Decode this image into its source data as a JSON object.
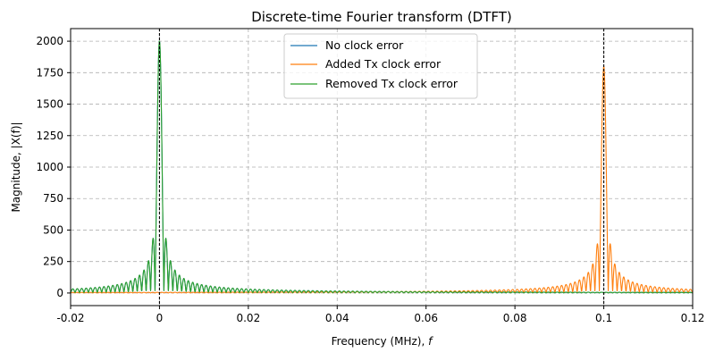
{
  "chart_data": {
    "type": "line",
    "title": "Discrete-time Fourier transform (DTFT)",
    "xlabel": "Frequency (MHz), ",
    "xlabel_var": "f",
    "ylabel": "Magnitude, |X(f)|",
    "xlim": [
      -0.02,
      0.12
    ],
    "ylim": [
      -100,
      2100
    ],
    "x_ticks": [
      -0.02,
      0,
      0.02,
      0.04,
      0.06,
      0.08,
      0.1,
      0.12
    ],
    "x_tick_labels": [
      "-0.02",
      "0",
      "0.02",
      "0.04",
      "0.06",
      "0.08",
      "0.1",
      "0.12"
    ],
    "y_ticks": [
      0,
      250,
      500,
      750,
      1000,
      1250,
      1500,
      1750,
      2000
    ],
    "y_tick_labels": [
      "0",
      "250",
      "500",
      "750",
      "1000",
      "1250",
      "1500",
      "1750",
      "2000"
    ],
    "grid": true,
    "legend_position": "top-center",
    "reference_lines_x": [
      0,
      0.1
    ],
    "series": [
      {
        "name": "No clock error",
        "color": "#1f77b4",
        "peak": {
          "x": 0,
          "y": 2000
        },
        "sidelobe_first_peak": 440,
        "sidelobe_spacing": 0.001,
        "tail_level": 30
      },
      {
        "name": "Added Tx clock error",
        "color": "#ff7f0e",
        "peak": {
          "x": 0.1,
          "y": 1800
        },
        "sidelobe_first_peak": 395,
        "sidelobe_spacing": 0.001,
        "tail_level": 28
      },
      {
        "name": "Removed Tx clock error",
        "color": "#2ca02c",
        "peak": {
          "x": 0,
          "y": 2000
        },
        "sidelobe_first_peak": 440,
        "sidelobe_spacing": 0.001,
        "tail_level": 30
      }
    ]
  }
}
